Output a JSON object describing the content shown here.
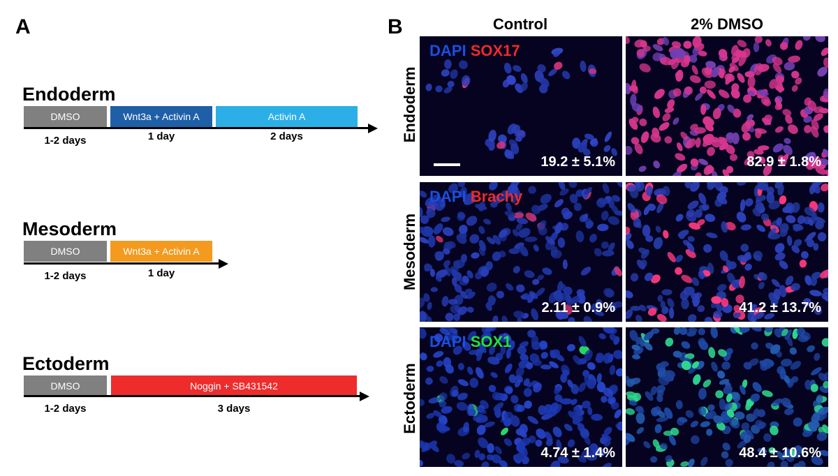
{
  "panel_a": {
    "letter": "A",
    "protocols": [
      {
        "name": "Endoderm",
        "steps": [
          {
            "label": "DMSO",
            "color": "#808080"
          },
          {
            "label": "Wnt3a + Activin A",
            "color": "#1f5fa8"
          },
          {
            "label": "Activin A",
            "color": "#2bafe6"
          }
        ],
        "durations": [
          "1-2 days",
          "1 day",
          "2 days"
        ]
      },
      {
        "name": "Mesoderm",
        "steps": [
          {
            "label": "DMSO",
            "color": "#808080"
          },
          {
            "label": "Wnt3a + Activin A",
            "color": "#f39a1f"
          }
        ],
        "durations": [
          "1-2 days",
          "1 day"
        ]
      },
      {
        "name": "Ectoderm",
        "steps": [
          {
            "label": "DMSO",
            "color": "#808080"
          },
          {
            "label": "Noggin + SB431542",
            "color": "#ee2c2c"
          }
        ],
        "durations": [
          "1-2 days",
          "3 days"
        ]
      }
    ]
  },
  "panel_b": {
    "letter": "B",
    "columns": [
      "Control",
      "2% DMSO"
    ],
    "rows": [
      {
        "name": "Endoderm",
        "stain": {
          "dapi": "DAPI",
          "marker": "SOX17",
          "marker_color": "#ee2a2a"
        },
        "values": [
          "19.2 ± 5.1%",
          "82.9 ± 1.8%"
        ]
      },
      {
        "name": "Mesoderm",
        "stain": {
          "dapi": "DAPI",
          "marker": "Brachy",
          "marker_color": "#ee2a2a"
        },
        "values": [
          "2.11 ± 0.9%",
          "41.2 ± 13.7%"
        ]
      },
      {
        "name": "Ectoderm",
        "stain": {
          "dapi": "DAPI",
          "marker": "SOX1",
          "marker_color": "#22e03a"
        },
        "values": [
          "4.74 ± 1.4%",
          "48.4 ± 10.6%"
        ]
      }
    ],
    "colors": {
      "dapi": "#1a4fe0"
    }
  }
}
